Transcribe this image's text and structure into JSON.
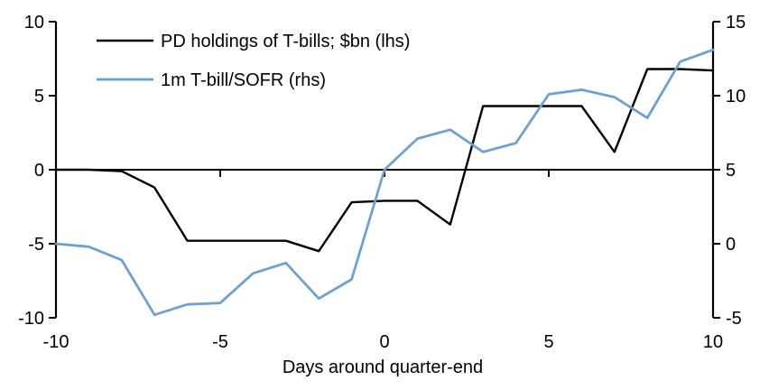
{
  "chart_data": {
    "type": "line",
    "title": "",
    "xlabel": "Days around quarter-end",
    "x": [
      -10,
      -9,
      -8,
      -7,
      -6,
      -5,
      -4,
      -3,
      -2,
      -1,
      0,
      1,
      2,
      3,
      4,
      5,
      6,
      7,
      8,
      9,
      10
    ],
    "series": [
      {
        "name": "PD holdings of T-bills; $bn (lhs)",
        "axis": "left",
        "color": "#000000",
        "values": [
          0,
          0,
          -0.1,
          -1.2,
          -4.8,
          -4.8,
          -4.8,
          -4.8,
          -5.5,
          -2.2,
          -2.1,
          -2.1,
          -3.7,
          4.3,
          4.3,
          4.3,
          4.3,
          1.2,
          6.8,
          6.8,
          6.7
        ]
      },
      {
        "name": "1m T-bill/SOFR (rhs)",
        "axis": "right",
        "color": "#6EA0D2",
        "values": [
          0,
          -0.2,
          -1.1,
          -4.8,
          -4.1,
          -4.0,
          -2.0,
          -1.3,
          -3.7,
          -2.4,
          5.0,
          7.1,
          7.7,
          6.2,
          6.8,
          10.1,
          10.4,
          9.9,
          8.5,
          12.3,
          13.1
        ]
      }
    ],
    "left_axis": {
      "range": [
        -10,
        10
      ],
      "ticks": [
        10,
        5,
        0,
        -5,
        -10
      ]
    },
    "right_axis": {
      "range": [
        -5,
        15
      ],
      "ticks": [
        15,
        10,
        5,
        0,
        -5
      ]
    },
    "x_ticks": [
      -10,
      -5,
      0,
      5,
      10
    ],
    "grid": false,
    "legend_position": "top-left",
    "axis_color": "#000000"
  }
}
